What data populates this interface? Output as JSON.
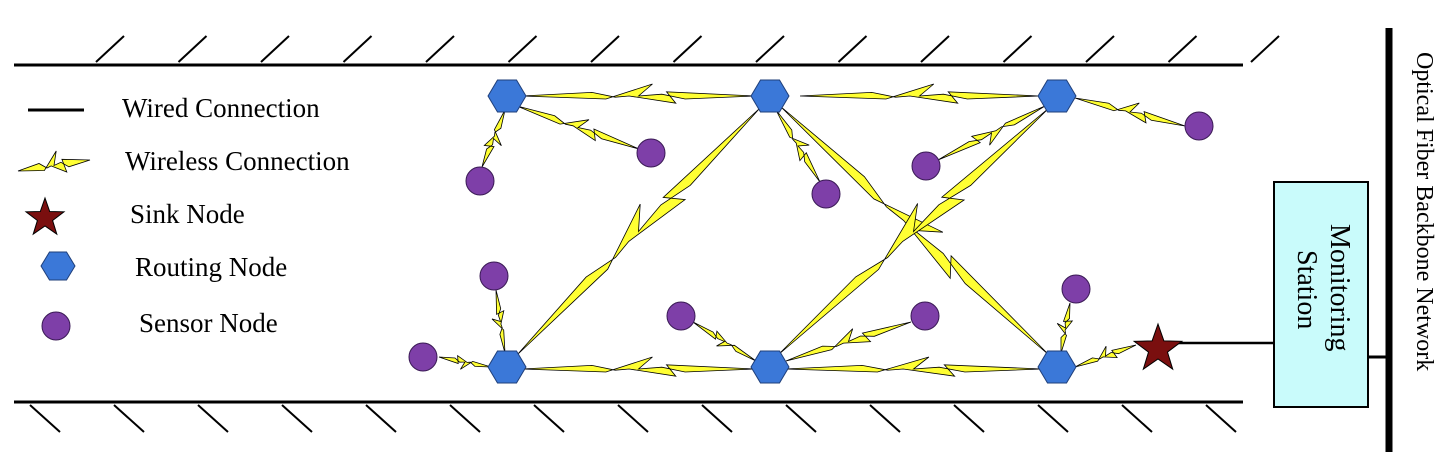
{
  "legend": {
    "wired": "Wired Connection",
    "wireless": "Wireless Connection",
    "sink": "Sink Node",
    "routing": "Routing Node",
    "sensor": "Sensor Node"
  },
  "station": {
    "line1": "Monitoring",
    "line2": "Station"
  },
  "backbone": {
    "label": "Optical Fiber Backbone Network"
  },
  "colors": {
    "routing_node": "#3B78D8",
    "sensor_node": "#7E3FA8",
    "sink_node": "#7A0F0F",
    "wireless": "#FFFF33",
    "station_fill": "#C9FBFB",
    "wall": "#000000"
  },
  "icons": {
    "wired": "wired-line-icon",
    "wireless": "lightning-bolt-icon",
    "sink": "star-icon",
    "routing": "hexagon-icon",
    "sensor": "circle-icon"
  }
}
